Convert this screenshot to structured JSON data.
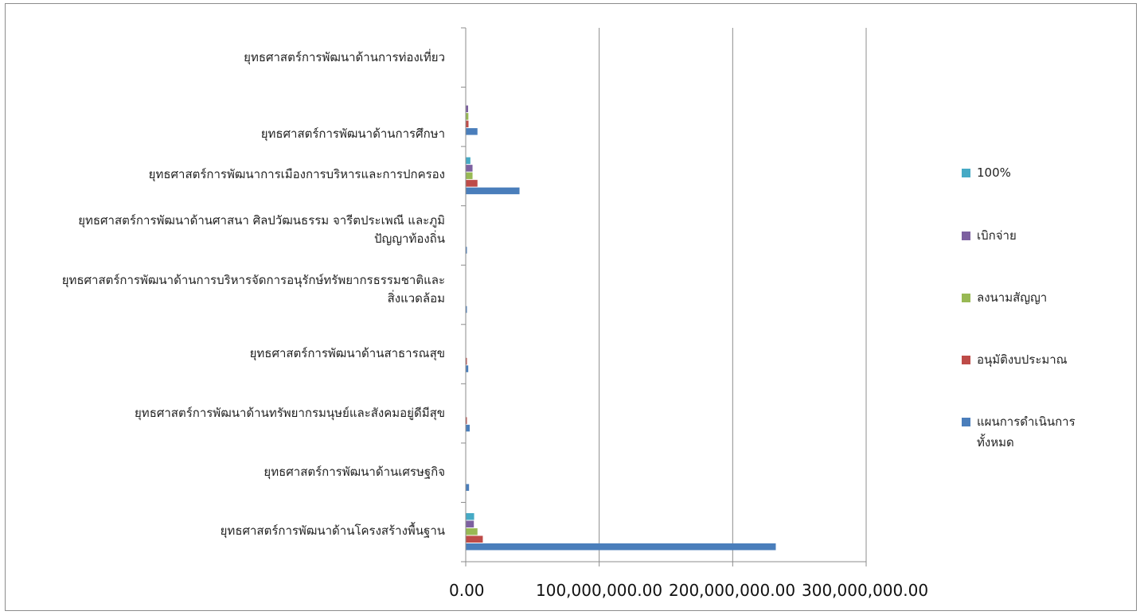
{
  "chart_data": {
    "type": "bar",
    "orientation": "horizontal",
    "title": "",
    "xlabel": "",
    "ylabel": "",
    "xlim": [
      0,
      300000000
    ],
    "grid": "vertical",
    "legend_position": "right",
    "x_ticks": [
      "0.00",
      "100,000,000.00",
      "200,000,000.00",
      "300,000,000.00"
    ],
    "x_tick_values": [
      0,
      100000000,
      200000000,
      300000000
    ],
    "categories": [
      "ยุทธศาสตร์การพัฒนาด้านโครงสร้างพื้นฐาน",
      "ยุทธศาสตร์การพัฒนาด้านเศรษฐกิจ",
      "ยุทธศาสตร์การพัฒนาด้านทรัพยากรมนุษย์และสังคมอยู่ดีมีสุข",
      "ยุทธศาสตร์การพัฒนาด้านสาธารณสุข",
      "ยุทธศาสตร์การพัฒนาด้านการบริหารจัดการอนุรักษ์ทรัพยากรธรรมชาติและสิ่งแวดล้อม",
      "ยุทธศาสตร์การพัฒนาด้านศาสนา ศิลปวัฒนธรรม จารีตประเพณี และภูมิปัญญาท้องถิ่น",
      "ยุทธศาสตร์การพัฒนาการเมืองการบริหารและการปกครอง",
      "ยุทธศาสตร์การพัฒนาด้านการศึกษา",
      "ยุทธศาสตร์การพัฒนาด้านการท่องเที่ยว"
    ],
    "series": [
      {
        "name": "แผนการดำเนินการทั้งหมด",
        "color": "#4a7ebb",
        "values": [
          232000000,
          2200000,
          2700000,
          1600000,
          300000,
          300000,
          40000000,
          8500000,
          0
        ]
      },
      {
        "name": "อนุมัติงบประมาณ",
        "color": "#be4b48",
        "values": [
          12500000,
          0,
          200000,
          200000,
          0,
          0,
          8500000,
          1800000,
          0
        ]
      },
      {
        "name": "ลงนามสัญญา",
        "color": "#98b954",
        "values": [
          8500000,
          0,
          0,
          0,
          0,
          0,
          4800000,
          1700000,
          0
        ]
      },
      {
        "name": "เบิกจ่าย",
        "color": "#7d60a0",
        "values": [
          5800000,
          0,
          0,
          0,
          0,
          0,
          4800000,
          1500000,
          0
        ]
      },
      {
        "name": "100%",
        "color": "#46aac5",
        "values": [
          6000000,
          0,
          0,
          0,
          0,
          0,
          3200000,
          0,
          0
        ]
      }
    ]
  },
  "legend": {
    "items": [
      {
        "label": "100%",
        "color": "#46aac5"
      },
      {
        "label": "เบิกจ่าย",
        "color": "#7d60a0"
      },
      {
        "label": "ลงนามสัญญา",
        "color": "#98b954"
      },
      {
        "label": "อนุมัติงบประมาณ",
        "color": "#be4b48"
      },
      {
        "label_line1": "แผนการดำเนินการ",
        "label_line2": "ทั้งหมด",
        "color": "#4a7ebb"
      }
    ]
  },
  "category_labels": [
    {
      "line1": "ยุทธศาสตร์การพัฒนาด้านการท่องเที่ยว"
    },
    {
      "line1": "ยุทธศาสตร์การพัฒนาด้านการศึกษา"
    },
    {
      "line1": "ยุทธศาสตร์การพัฒนาการเมืองการบริหารและการปกครอง"
    },
    {
      "line1": "ยุทธศาสตร์การพัฒนาด้านศาสนา ศิลปวัฒนธรรม จารีตประเพณี และภูมิ",
      "line2": "ปัญญาท้องถิ่น"
    },
    {
      "line1": "ยุทธศาสตร์การพัฒนาด้านการบริหารจัดการอนุรักษ์ทรัพยากรธรรมชาติและ",
      "line2": "สิ่งแวดล้อม"
    },
    {
      "line1": "ยุทธศาสตร์การพัฒนาด้านสาธารณสุข"
    },
    {
      "line1": "ยุทธศาสตร์การพัฒนาด้านทรัพยากรมนุษย์และสังคมอยู่ดีมีสุข"
    },
    {
      "line1": "ยุทธศาสตร์การพัฒนาด้านเศรษฐกิจ"
    },
    {
      "line1": "ยุทธศาสตร์การพัฒนาด้านโครงสร้างพื้นฐาน"
    }
  ]
}
